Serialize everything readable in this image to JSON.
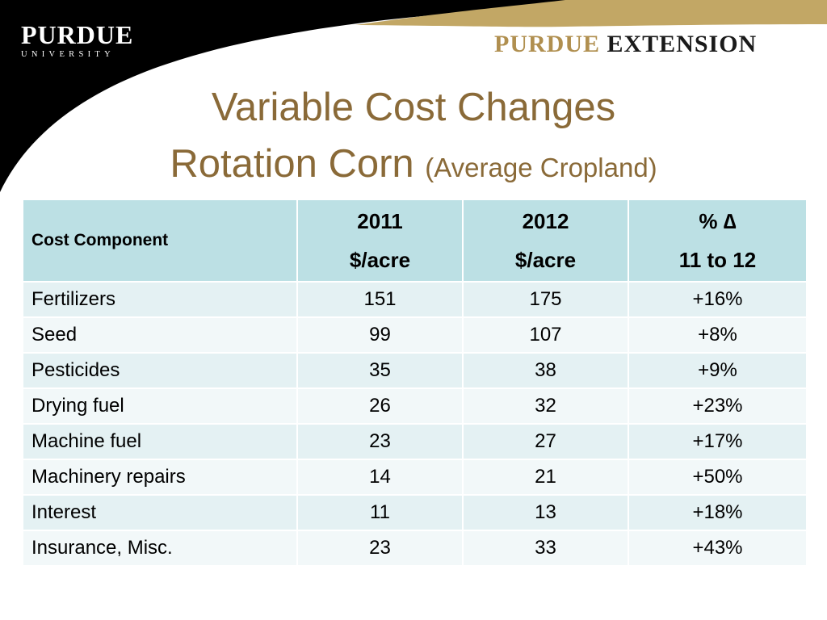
{
  "branding": {
    "university_word": "PURDUE",
    "university_sub": "UNIVERSITY",
    "extension_part1": "PURDUE",
    "extension_part2": "EXTENSION",
    "colors": {
      "gold": "#b08f4f",
      "black": "#000000",
      "title": "#8a6a38",
      "header_fill": "#bce0e4"
    }
  },
  "slide": {
    "title_line1": "Variable Cost Changes",
    "title_line2": "Rotation Corn",
    "title_sub": "(Average Cropland)"
  },
  "table": {
    "headers": [
      {
        "line1": "Cost Component",
        "line2": ""
      },
      {
        "line1": "2011",
        "line2": "$/acre"
      },
      {
        "line1": "2012",
        "line2": "$/acre"
      },
      {
        "line1": "% ∆",
        "line2": "11 to 12"
      }
    ],
    "rows": [
      [
        "Fertilizers",
        "151",
        "175",
        "+16%"
      ],
      [
        "Seed",
        "99",
        "107",
        "+8%"
      ],
      [
        "Pesticides",
        "35",
        "38",
        "+9%"
      ],
      [
        "Drying fuel",
        "26",
        "32",
        "+23%"
      ],
      [
        "Machine fuel",
        "23",
        "27",
        "+17%"
      ],
      [
        "Machinery repairs",
        "14",
        "21",
        "+50%"
      ],
      [
        "Interest",
        "11",
        "13",
        "+18%"
      ],
      [
        "Insurance, Misc.",
        "23",
        "33",
        "+43%"
      ]
    ]
  }
}
